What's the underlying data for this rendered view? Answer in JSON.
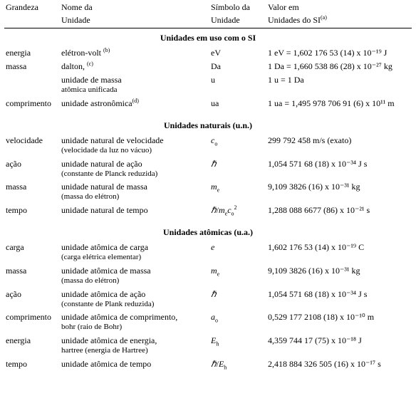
{
  "head": {
    "r1": {
      "c1": "Grandeza",
      "c2": "Nome da",
      "c3": "Símbolo da",
      "c4": "Valor em"
    },
    "r2": {
      "c2": "Unidade",
      "c3": "Unidade",
      "c4_pre": "Unidades do SI",
      "c4_note": "(a)"
    }
  },
  "sections": {
    "s1": "Unidades em uso com o SI",
    "s2": "Unidades naturais (u.n.)",
    "s3": "Unidades atômicas (u.a.)"
  },
  "rows": {
    "si_energia": {
      "q": "energia",
      "name_pre": "elétron-volt",
      "nnote": "(b)",
      "sym": "eV",
      "val": "1 eV = 1,602 176 53 (14) x 10⁻¹⁹  J"
    },
    "si_massa_da": {
      "q": "massa",
      "name_pre": "dalton,",
      "nnote": "(c)",
      "sym": "Da",
      "val": "1 Da = 1,660 538 86 (28) x 10⁻²⁷ kg"
    },
    "si_u": {
      "q": "",
      "name": "unidade de massa\natômica unificada",
      "sym": "u",
      "val": "1 u = 1 Da"
    },
    "si_comp": {
      "q": "comprimento",
      "name_pre": "unidade astronômica",
      "nnote": "(d)",
      "sym": "ua",
      "val": "1 ua = 1,495 978 706 91 (6) x 10¹¹ m"
    },
    "un_vel": {
      "q": "velocidade",
      "name": "unidade natural de velocidade\n(velocidade da luz no vácuo)",
      "sym_html": "<span class='sym'>c</span><sub>o</sub>",
      "val": "299 792 458 m/s (exato)"
    },
    "un_acao": {
      "q": "ação",
      "name": "unidade natural de ação\n(constante de Planck reduzida)",
      "sym_html": "<span class='hbar'>ℏ</span>",
      "val": "1,054 571 68 (18) x 10⁻³⁴ J s"
    },
    "un_massa": {
      "q": "massa",
      "name": "unidade natural de massa\n(massa do elétron)",
      "sym_html": "<span class='sym'>m</span><sub>e</sub>",
      "val": "9,109 3826 (16) x 10⁻³¹ kg"
    },
    "un_tempo": {
      "q": "tempo",
      "name": "unidade natural de tempo",
      "sym_html": "<span class='hbar'>ℏ</span>/<span class='sym'>m</span><sub>e</sub><span class='sym'>c</span><sub>o</sub><sup>2</sup>",
      "val": "1,288 088 6677 (86) x 10⁻²¹ s"
    },
    "ua_carga": {
      "q": "carga",
      "name": "unidade atômica de carga\n(carga elétrica elementar)",
      "sym_html": "<span class='sym'>e</span>",
      "val": "1,602 176 53 (14) x 10⁻¹⁹ C"
    },
    "ua_massa": {
      "q": "massa",
      "name": "unidade atômica de massa\n(massa do elétron)",
      "sym_html": "<span class='sym'>m</span><sub>e</sub>",
      "val": "9,109 3826 (16) x 10⁻³¹ kg"
    },
    "ua_acao": {
      "q": "ação",
      "name": "unidade atômica de ação\n(constante de Plank reduzida)",
      "sym_html": "<span class='hbar'>ℏ</span>",
      "val": "1,054 571 68 (18) x 10⁻³⁴ J s"
    },
    "ua_comp": {
      "q": "comprimento",
      "name": "unidade atômica de comprimento,\nbohr (raio de Bohr)",
      "sym_html": "<span class='sym'>a</span><sub>o</sub>",
      "val": "0,529 177 2108 (18) x 10⁻¹⁰ m"
    },
    "ua_energia": {
      "q": "energia",
      "name": "unidade atômica de energia,\nhartree (energia de Hartree)",
      "sym_html": "<span class='sym'>E</span><sub>h</sub>",
      "val": "4,359 744 17 (75) x 10⁻¹⁸  J"
    },
    "ua_tempo": {
      "q": "tempo",
      "name": "unidade atômica de tempo",
      "sym_html": "<span class='hbar'>ℏ</span>/<span class='sym'>E</span><sub>h</sub>",
      "val": "2,418 884 326 505 (16) x 10⁻¹⁷ s"
    }
  }
}
